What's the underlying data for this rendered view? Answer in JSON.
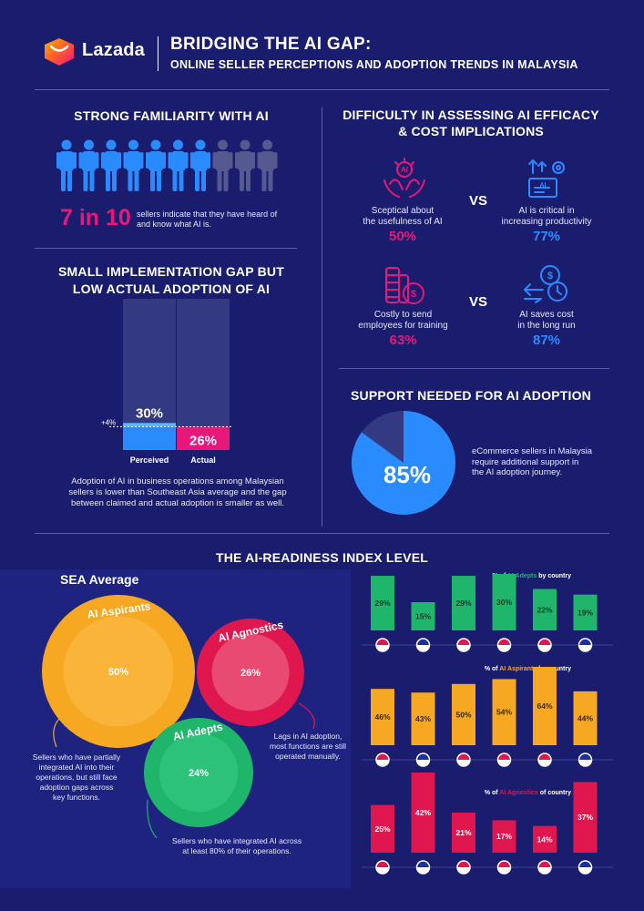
{
  "header": {
    "brand": "Lazada",
    "title": "BRIDGING THE AI GAP:",
    "subtitle": "ONLINE SELLER PERCEPTIONS AND ADOPTION TRENDS IN MALAYSIA"
  },
  "familiarity": {
    "title": "STRONG FAMILIARITY WITH AI",
    "stat": "7 in 10",
    "text_line1": "sellers indicate that they have heard of",
    "text_line2": "and know what AI is.",
    "known": 7,
    "total": 10
  },
  "gap": {
    "title_line1": "SMALL IMPLEMENTATION GAP BUT",
    "title_line2": "LOW ACTUAL ADOPTION OF AI",
    "chart_data": {
      "type": "bar",
      "categories": [
        "Perceived",
        "Actual"
      ],
      "values": [
        30,
        26
      ],
      "value_labels": [
        "30%",
        "26%"
      ],
      "gap_label": "+4%"
    },
    "desc_line1": "Adoption of AI in business operations among Malaysian",
    "desc_line2": "sellers is lower than Southeast Asia average and the gap",
    "desc_line3": "between claimed and actual adoption is smaller as well."
  },
  "difficulty": {
    "title_line1": "DIFFICULTY IN ASSESSING AI EFFICACY",
    "title_line2": "& COST IMPLICATIONS",
    "vs": "VS",
    "row1": {
      "left_line1": "Sceptical about",
      "left_line2": "the usefulness of AI",
      "left_pct": "50%",
      "right_line1": "AI is critical in",
      "right_line2": "increasing productivity",
      "right_pct": "77%"
    },
    "row2": {
      "left_line1": "Costly to send",
      "left_line2": "employees for training",
      "left_pct": "63%",
      "right_line1": "AI saves cost",
      "right_line2": "in the long run",
      "right_pct": "87%"
    },
    "icons": [
      "ai-hands-icon",
      "ai-productivity-icon",
      "coins-icon",
      "cost-saving-icon"
    ]
  },
  "support": {
    "title": "SUPPORT NEEDED FOR AI ADOPTION",
    "chart_data": {
      "type": "pie",
      "values": [
        85,
        15
      ],
      "label": "85%"
    },
    "desc_line1": "eCommerce sellers in Malaysia",
    "desc_line2": "require additional support in",
    "desc_line3": "the AI adoption journey."
  },
  "readiness": {
    "title": "THE AI-READINESS INDEX LEVEL",
    "sea_label": "SEA Average",
    "aspirants": {
      "name": "AI Aspirants",
      "pct": "50%",
      "desc_line1": "Sellers who have partially",
      "desc_line2": "integrated AI into their",
      "desc_line3": "operations, but still face",
      "desc_line4": "adoption gaps across",
      "desc_line5": "key functions."
    },
    "agnostics": {
      "name": "AI Agnostics",
      "pct": "26%",
      "desc_line1": "Lags in AI adoption,",
      "desc_line2": "most functions are still",
      "desc_line3": "operated manually."
    },
    "adepts": {
      "name": "AI Adepts",
      "pct": "24%",
      "desc_line1": "Sellers who have integrated AI across",
      "desc_line2": "at least 80% of their operations."
    },
    "country_charts": [
      {
        "title_prefix": "% of ",
        "title_highlight": "AI Adepts",
        "title_suffix": " by country",
        "color": "#1fb56b",
        "chart_data": {
          "type": "bar",
          "categories": [
            "SG",
            "MY",
            "ID",
            "TH",
            "VN",
            "PH"
          ],
          "values": [
            29,
            15,
            29,
            30,
            22,
            19
          ]
        }
      },
      {
        "title_prefix": "% of ",
        "title_highlight": "AI Aspirants",
        "title_suffix": " by country",
        "color": "#f7a823",
        "chart_data": {
          "type": "bar",
          "categories": [
            "SG",
            "MY",
            "ID",
            "TH",
            "VN",
            "PH"
          ],
          "values": [
            46,
            43,
            50,
            54,
            64,
            44
          ]
        }
      },
      {
        "title_prefix": "% of ",
        "title_highlight": "AI Agnostics",
        "title_suffix": " of country",
        "color": "#e0174f",
        "chart_data": {
          "type": "bar",
          "categories": [
            "SG",
            "MY",
            "ID",
            "TH",
            "VN",
            "PH"
          ],
          "values": [
            25,
            42,
            21,
            17,
            14,
            37
          ]
        }
      }
    ]
  },
  "colors": {
    "background": "#1a1d6e",
    "pink": "#e8177a",
    "blue": "#2a8bff",
    "green": "#1fb56b",
    "orange": "#f7a823",
    "red": "#e0174f"
  }
}
